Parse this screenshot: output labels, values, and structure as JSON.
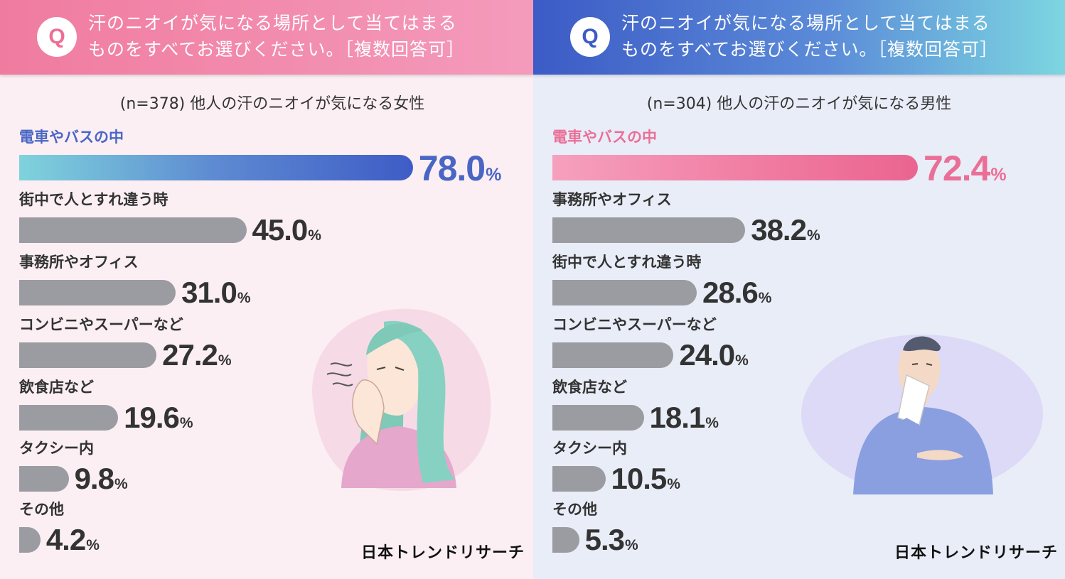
{
  "female": {
    "question": {
      "badge": "Q",
      "line1": "汗のニオイが気になる場所として当てはまる",
      "line2": "ものをすべてお選びください。［複数回答可］"
    },
    "subtitle": "(n=378) 他人の汗のニオイが気になる女性",
    "logo": "日本トレンドリサーチ",
    "accent": "#4a66c4"
  },
  "male": {
    "question": {
      "badge": "Q",
      "line1": "汗のニオイが気になる場所として当てはまる",
      "line2": "ものをすべてお選びください。［複数回答可］"
    },
    "subtitle": "(n=304) 他人の汗のニオイが気になる男性",
    "logo": "日本トレンドリサーチ",
    "accent": "#ea6f96"
  },
  "chart_data": [
    {
      "type": "bar",
      "orientation": "horizontal",
      "unit": "%",
      "categories": [
        "電車やバスの中",
        "街中で人とすれ違う時",
        "事務所やオフィス",
        "コンビニやスーパーなど",
        "飲食店など",
        "タクシー内",
        "その他"
      ],
      "values": [
        78.0,
        45.0,
        31.0,
        27.2,
        19.6,
        9.8,
        4.2
      ],
      "value_labels": [
        "78.0",
        "45.0",
        "31.0",
        "27.2",
        "19.6",
        "9.8",
        "4.2"
      ],
      "bar_color": "#9b9ca1",
      "highlight_color": "#4a66c4"
    },
    {
      "type": "bar",
      "orientation": "horizontal",
      "unit": "%",
      "categories": [
        "電車やバスの中",
        "事務所やオフィス",
        "街中で人とすれ違う時",
        "コンビニやスーパーなど",
        "飲食店など",
        "タクシー内",
        "その他"
      ],
      "values": [
        72.4,
        38.2,
        28.6,
        24.0,
        18.1,
        10.5,
        5.3
      ],
      "value_labels": [
        "72.4",
        "38.2",
        "28.6",
        "24.0",
        "18.1",
        "10.5",
        "5.3"
      ],
      "bar_color": "#9b9ca1",
      "highlight_color": "#ea6f96"
    }
  ]
}
